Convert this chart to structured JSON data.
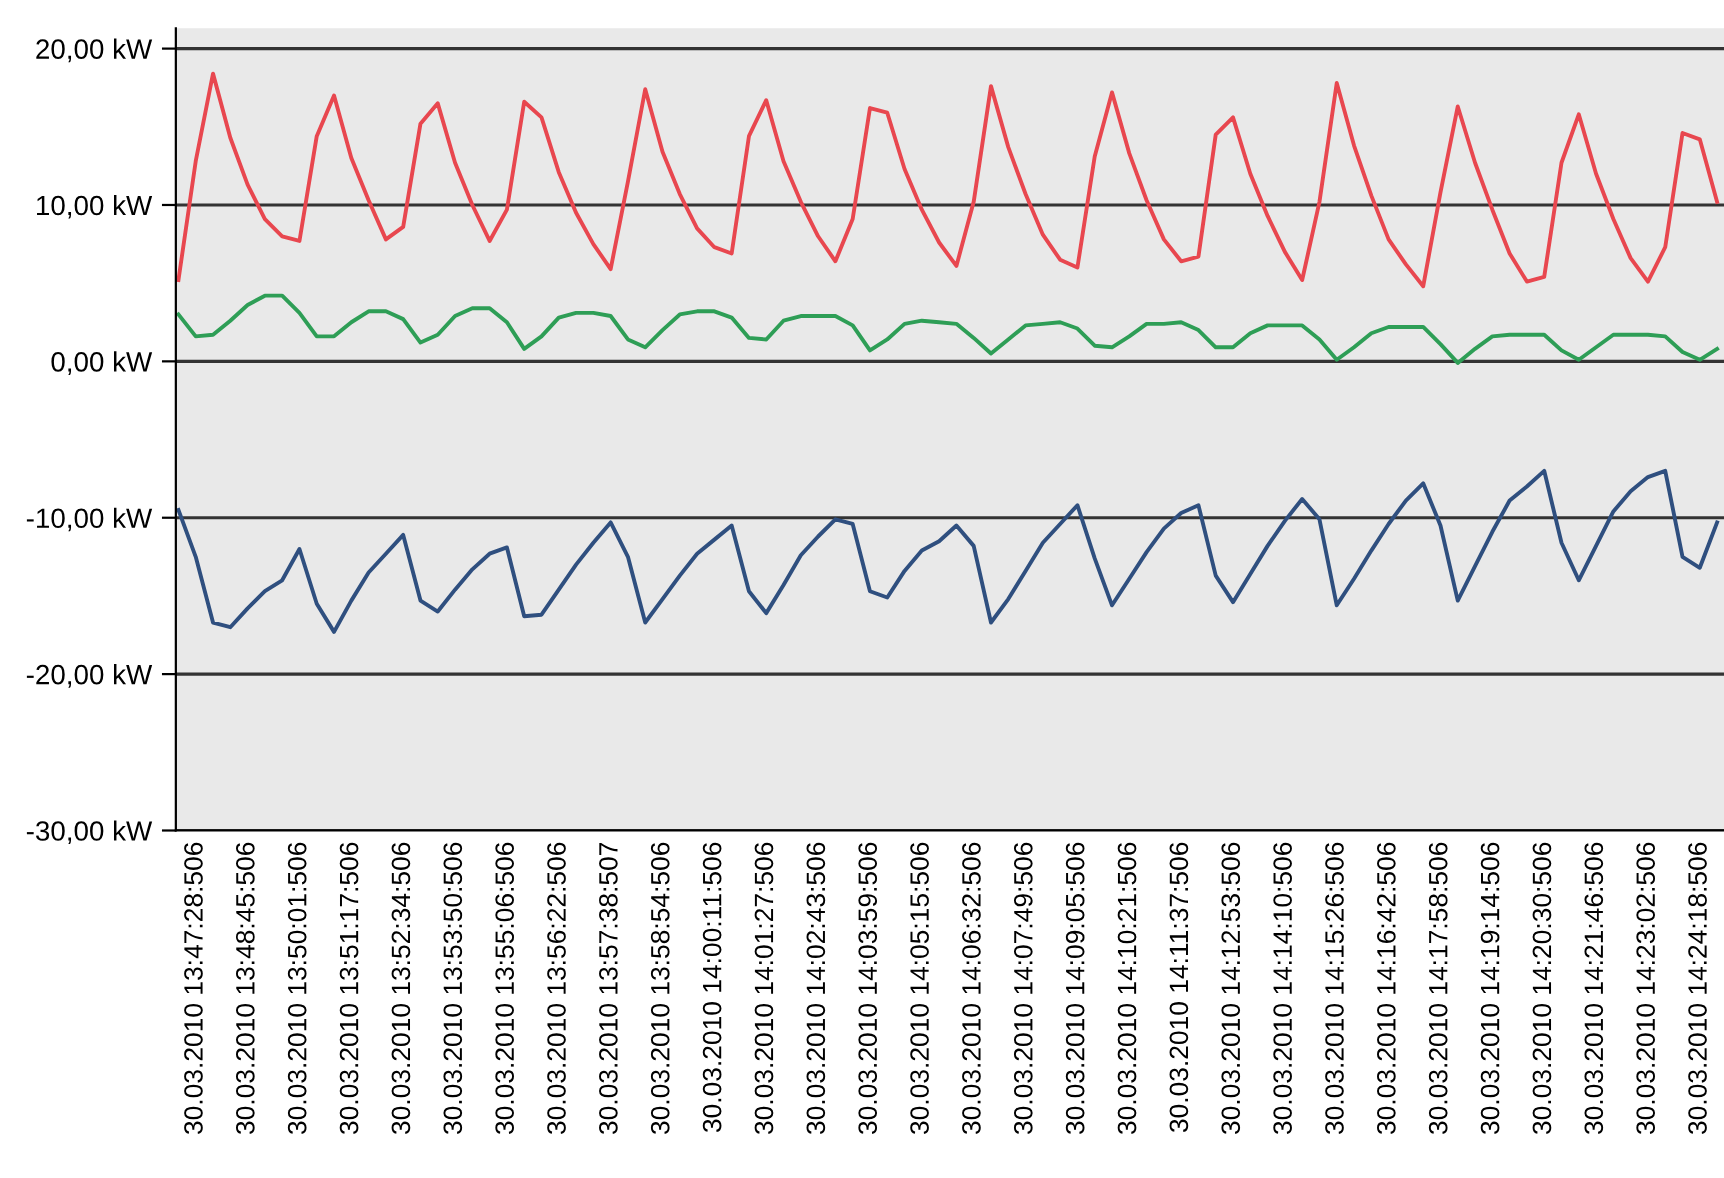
{
  "chart_data": {
    "type": "line",
    "grid": "y",
    "marker": "none",
    "line_style": "solid",
    "ylim": [
      -30,
      21.3
    ],
    "yticks": [
      {
        "value": -30,
        "label": "-30,00 kW"
      },
      {
        "value": -20,
        "label": "-20,00 kW"
      },
      {
        "value": -10,
        "label": "-10,00 kW"
      },
      {
        "value": 0,
        "label": "0,00 kW"
      },
      {
        "value": 10,
        "label": "10,00 kW"
      },
      {
        "value": 20,
        "label": "20,00 kW"
      }
    ],
    "categories": [
      null,
      "30.03.2010 13:47:28:506",
      null,
      null,
      "30.03.2010 13:48:45:506",
      null,
      null,
      "30.03.2010 13:50:01:506",
      null,
      null,
      "30.03.2010 13:51:17:506",
      null,
      null,
      "30.03.2010 13:52:34:506",
      null,
      null,
      "30.03.2010 13:53:50:506",
      null,
      null,
      "30.03.2010 13:55:06:506",
      null,
      null,
      "30.03.2010 13:56:22:506",
      null,
      null,
      "30.03.2010 13:57:38:507",
      null,
      null,
      "30.03.2010 13:58:54:506",
      null,
      null,
      "30.03.2010 14:00:11:506",
      null,
      null,
      "30.03.2010 14:01:27:506",
      null,
      null,
      "30.03.2010 14:02:43:506",
      null,
      null,
      "30.03.2010 14:03:59:506",
      null,
      null,
      "30.03.2010 14:05:15:506",
      null,
      null,
      "30.03.2010 14:06:32:506",
      null,
      null,
      "30.03.2010 14:07:49:506",
      null,
      null,
      "30.03.2010 14:09:05:506",
      null,
      null,
      "30.03.2010 14:10:21:506",
      null,
      null,
      "30.03.2010 14:11:37:506",
      null,
      null,
      "30.03.2010 14:12:53:506",
      null,
      null,
      "30.03.2010 14:14:10:506",
      null,
      null,
      "30.03.2010 14:15:26:506",
      null,
      null,
      "30.03.2010 14:16:42:506",
      null,
      null,
      "30.03.2010 14:17:58:506",
      null,
      null,
      "30.03.2010 14:19:14:506",
      null,
      null,
      "30.03.2010 14:20:30:506",
      null,
      null,
      "30.03.2010 14:21:46:506",
      null,
      null,
      "30.03.2010 14:23:02:506",
      null,
      null,
      "30.03.2010 14:24:18:506",
      null
    ],
    "series": [
      {
        "color": "#e8474f",
        "values": [
          5.2,
          12.8,
          18.4,
          14.3,
          11.3,
          9.1,
          8.0,
          7.7,
          14.4,
          17.0,
          13.0,
          10.3,
          7.8,
          8.6,
          15.2,
          16.5,
          12.7,
          10.0,
          7.7,
          9.7,
          16.6,
          15.6,
          12.1,
          9.5,
          7.5,
          5.9,
          11.5,
          17.4,
          13.4,
          10.7,
          8.5,
          7.3,
          6.9,
          14.4,
          16.7,
          12.8,
          10.2,
          8.0,
          6.4,
          9.1,
          16.2,
          15.9,
          12.3,
          9.7,
          7.6,
          6.1,
          10.2,
          17.6,
          13.7,
          10.7,
          8.1,
          6.5,
          6.0,
          13.1,
          17.2,
          13.3,
          10.3,
          7.8,
          6.4,
          6.7,
          14.5,
          15.6,
          12.0,
          9.3,
          7.0,
          5.2,
          10.2,
          17.8,
          13.8,
          10.6,
          7.8,
          6.2,
          4.8,
          10.8,
          16.3,
          12.7,
          9.7,
          6.9,
          5.1,
          5.4,
          12.7,
          15.8,
          12.0,
          9.1,
          6.6,
          5.1,
          7.3,
          14.6,
          14.2,
          10.2
        ]
      },
      {
        "color": "#2e9e56",
        "values": [
          3.0,
          1.6,
          1.7,
          2.6,
          3.6,
          4.2,
          4.2,
          3.1,
          1.6,
          1.6,
          2.5,
          3.2,
          3.2,
          2.7,
          1.2,
          1.7,
          2.9,
          3.4,
          3.4,
          2.5,
          0.8,
          1.6,
          2.8,
          3.1,
          3.1,
          2.9,
          1.4,
          0.9,
          2.0,
          3.0,
          3.2,
          3.2,
          2.8,
          1.5,
          1.4,
          2.6,
          2.9,
          2.9,
          2.9,
          2.3,
          0.7,
          1.4,
          2.4,
          2.6,
          2.5,
          2.4,
          1.5,
          0.5,
          1.4,
          2.3,
          2.4,
          2.5,
          2.1,
          1.0,
          0.9,
          1.6,
          2.4,
          2.4,
          2.5,
          2.0,
          0.9,
          0.9,
          1.8,
          2.3,
          2.3,
          2.3,
          1.4,
          0.1,
          0.9,
          1.8,
          2.2,
          2.2,
          2.2,
          1.1,
          -0.1,
          0.8,
          1.6,
          1.7,
          1.7,
          1.7,
          0.7,
          0.1,
          0.9,
          1.7,
          1.7,
          1.7,
          1.6,
          0.6,
          0.1,
          0.8
        ]
      },
      {
        "color": "#2f4f7f",
        "values": [
          -9.5,
          -12.5,
          -16.7,
          -17.0,
          -15.8,
          -14.7,
          -14.0,
          -12.0,
          -15.5,
          -17.3,
          -15.3,
          -13.5,
          -12.3,
          -11.1,
          -15.3,
          -16.0,
          -14.6,
          -13.3,
          -12.3,
          -11.9,
          -16.3,
          -16.2,
          -14.6,
          -13.0,
          -11.6,
          -10.3,
          -12.5,
          -16.7,
          -15.2,
          -13.7,
          -12.3,
          -11.4,
          -10.5,
          -14.7,
          -16.1,
          -14.3,
          -12.4,
          -11.2,
          -10.1,
          -10.4,
          -14.7,
          -15.1,
          -13.4,
          -12.1,
          -11.5,
          -10.5,
          -11.8,
          -16.7,
          -15.2,
          -13.4,
          -11.6,
          -10.4,
          -9.2,
          -12.6,
          -15.6,
          -13.9,
          -12.2,
          -10.7,
          -9.7,
          -9.2,
          -13.7,
          -15.4,
          -13.6,
          -11.8,
          -10.2,
          -8.8,
          -10.1,
          -15.6,
          -13.9,
          -12.1,
          -10.4,
          -8.9,
          -7.8,
          -10.5,
          -15.3,
          -13.1,
          -10.9,
          -8.9,
          -8.0,
          -7.0,
          -11.6,
          -14.0,
          -11.8,
          -9.6,
          -8.3,
          -7.4,
          -7.0,
          -12.5,
          -13.2,
          -10.3
        ]
      }
    ]
  }
}
